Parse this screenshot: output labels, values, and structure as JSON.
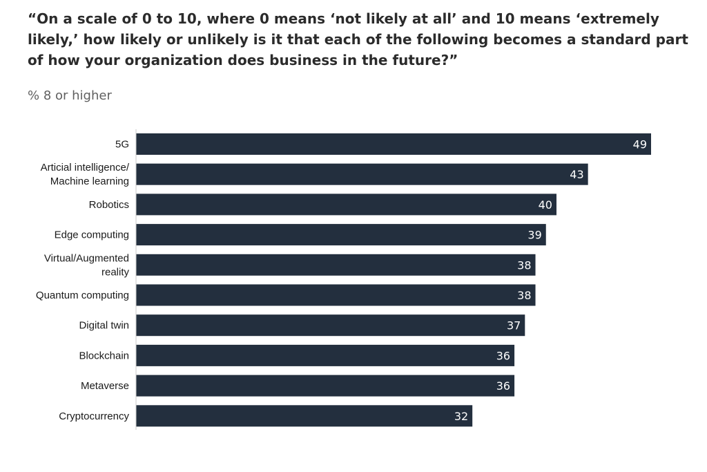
{
  "title": "“On a scale of 0 to 10, where 0 means ‘not likely at all’ and 10 means ‘extremely likely,’ how likely or unlikely is it that each of the following becomes a standard part of how your organization does business in the future?”",
  "subtitle": "% 8 or higher",
  "colors": {
    "bar": "#232f3e",
    "axis": "#c8c8c8",
    "value_text": "#ffffff"
  },
  "chart_data": {
    "type": "bar",
    "orientation": "horizontal",
    "categories": [
      "5G",
      "Articial intelligence/\nMachine learning",
      "Robotics",
      "Edge computing",
      "Virtual/Augmented\nreality",
      "Quantum computing",
      "Digital twin",
      "Blockchain",
      "Metaverse",
      "Cryptocurrency"
    ],
    "values": [
      49,
      43,
      40,
      39,
      38,
      38,
      37,
      36,
      36,
      32
    ],
    "xlim": [
      0,
      49
    ],
    "data_labels": true,
    "grid": false,
    "legend": "none"
  }
}
